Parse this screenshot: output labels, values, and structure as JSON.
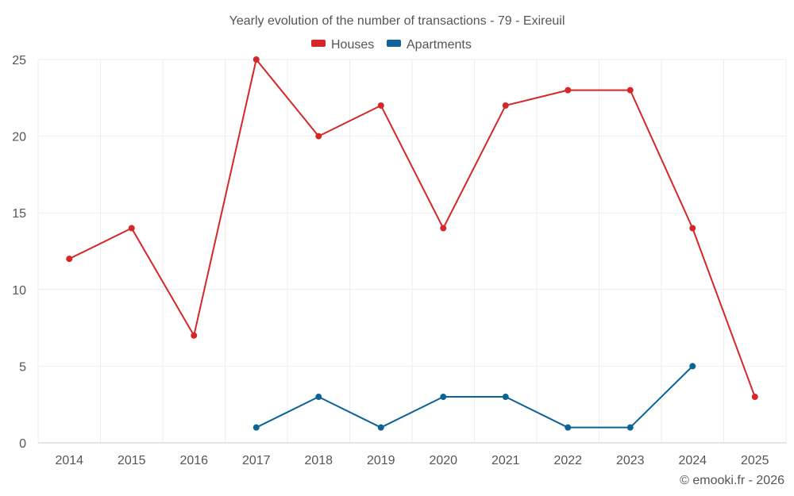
{
  "chart_data": {
    "type": "line",
    "title": "Yearly evolution of the number of transactions - 79 - Exireuil",
    "categories": [
      "2014",
      "2015",
      "2016",
      "2017",
      "2018",
      "2019",
      "2020",
      "2021",
      "2022",
      "2023",
      "2024",
      "2025"
    ],
    "series": [
      {
        "name": "Houses",
        "color": "#d62728",
        "values": [
          12,
          14,
          7,
          25,
          20,
          22,
          14,
          22,
          23,
          23,
          14,
          3
        ]
      },
      {
        "name": "Apartments",
        "color": "#0b6396",
        "values": [
          null,
          null,
          null,
          1,
          3,
          1,
          3,
          3,
          1,
          1,
          5,
          null
        ]
      }
    ],
    "yticks": [
      0,
      5,
      10,
      15,
      20,
      25
    ],
    "ylim": [
      0,
      25
    ],
    "xlabel": "",
    "ylabel": "",
    "grid": true,
    "legend": "top-center"
  },
  "credit": "© emooki.fr - 2026"
}
